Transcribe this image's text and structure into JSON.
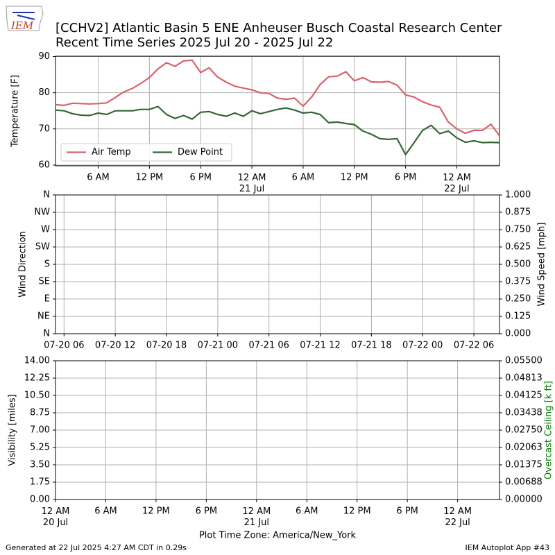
{
  "header": {
    "logo": "IEM",
    "title": "[CCHV2] Atlantic Basin 5 ENE Anheuser Busch Coastal Research Center",
    "subtitle": "Recent Time Series 2025 Jul 20 - 2025 Jul 22"
  },
  "footer": {
    "left": "Generated at 22 Jul 2025 4:27 AM CDT in 0.29s",
    "right": "IEM Autoplot App #43"
  },
  "chart_data": [
    {
      "type": "line",
      "ylabel": "Temperature [F]",
      "grid": true,
      "legend": "lower left",
      "xlim": [
        "2025-07-20T01:00",
        "2025-07-22T05:00"
      ],
      "xticks": [
        {
          "value": "2025-07-20T06:00",
          "label": "6 AM"
        },
        {
          "value": "2025-07-20T12:00",
          "label": "12 PM"
        },
        {
          "value": "2025-07-20T18:00",
          "label": "6 PM"
        },
        {
          "value": "2025-07-21T00:00",
          "label": "12 AM\n21 Jul"
        },
        {
          "value": "2025-07-21T06:00",
          "label": "6 AM"
        },
        {
          "value": "2025-07-21T12:00",
          "label": "12 PM"
        },
        {
          "value": "2025-07-21T18:00",
          "label": "6 PM"
        },
        {
          "value": "2025-07-22T00:00",
          "label": "12 AM\n22 Jul"
        }
      ],
      "ylim": [
        59.8,
        90.1
      ],
      "yticks": [
        60,
        70,
        80,
        90
      ],
      "x": [
        "2025-07-20T01:00",
        "2025-07-20T02:00",
        "2025-07-20T03:00",
        "2025-07-20T04:00",
        "2025-07-20T05:00",
        "2025-07-20T06:00",
        "2025-07-20T07:00",
        "2025-07-20T08:00",
        "2025-07-20T09:00",
        "2025-07-20T10:00",
        "2025-07-20T11:00",
        "2025-07-20T12:00",
        "2025-07-20T13:00",
        "2025-07-20T14:00",
        "2025-07-20T15:00",
        "2025-07-20T16:00",
        "2025-07-20T17:00",
        "2025-07-20T18:00",
        "2025-07-20T19:00",
        "2025-07-20T20:00",
        "2025-07-20T21:00",
        "2025-07-20T22:00",
        "2025-07-20T23:00",
        "2025-07-21T00:00",
        "2025-07-21T01:00",
        "2025-07-21T02:00",
        "2025-07-21T03:00",
        "2025-07-21T04:00",
        "2025-07-21T05:00",
        "2025-07-21T06:00",
        "2025-07-21T07:00",
        "2025-07-21T08:00",
        "2025-07-21T09:00",
        "2025-07-21T10:00",
        "2025-07-21T11:00",
        "2025-07-21T12:00",
        "2025-07-21T13:00",
        "2025-07-21T14:00",
        "2025-07-21T15:00",
        "2025-07-21T16:00",
        "2025-07-21T17:00",
        "2025-07-21T18:00",
        "2025-07-21T19:00",
        "2025-07-21T20:00",
        "2025-07-21T21:00",
        "2025-07-21T22:00",
        "2025-07-21T23:00",
        "2025-07-22T00:00",
        "2025-07-22T01:00",
        "2025-07-22T02:00",
        "2025-07-22T03:00",
        "2025-07-22T04:00",
        "2025-07-22T05:00"
      ],
      "series": [
        {
          "name": "Air Temp",
          "color": "#d9626b",
          "values": [
            76.7,
            76.5,
            77.1,
            77.0,
            76.9,
            77.0,
            77.2,
            78.7,
            80.2,
            81.2,
            82.6,
            84.2,
            86.6,
            88.3,
            87.3,
            88.8,
            89.0,
            85.6,
            86.9,
            84.3,
            82.9,
            81.8,
            81.3,
            80.8,
            80.0,
            79.8,
            78.5,
            78.2,
            78.5,
            76.3,
            78.8,
            82.3,
            84.4,
            84.6,
            85.8,
            83.3,
            84.2,
            83.0,
            82.9,
            83.1,
            82.1,
            79.4,
            78.8,
            77.5,
            76.6,
            76.0,
            71.9,
            70.0,
            68.8,
            69.6,
            69.6,
            71.3,
            68.1
          ]
        },
        {
          "name": "Dew Point",
          "color": "#336633",
          "values": [
            75.2,
            75.0,
            74.2,
            73.8,
            73.7,
            74.4,
            74.0,
            75.0,
            75.0,
            75.0,
            75.4,
            75.4,
            76.2,
            74.0,
            72.9,
            73.7,
            72.7,
            74.6,
            74.8,
            74.0,
            73.5,
            74.4,
            73.5,
            75.0,
            74.2,
            74.8,
            75.4,
            75.8,
            75.2,
            74.4,
            74.6,
            74.0,
            71.7,
            71.9,
            71.5,
            71.2,
            69.4,
            68.5,
            67.3,
            67.1,
            67.3,
            62.9,
            66.2,
            69.6,
            71.0,
            68.7,
            69.4,
            67.5,
            66.3,
            66.7,
            66.2,
            66.3,
            66.2
          ]
        }
      ]
    },
    {
      "type": "line",
      "ylabel": "Wind Direction",
      "y2label": "Wind Speed [mph]",
      "grid": true,
      "xlim": [
        "2025-07-20T05:00",
        "2025-07-22T09:00"
      ],
      "xticks": [
        {
          "value": "2025-07-20T06:00",
          "label": "07-20 06"
        },
        {
          "value": "2025-07-20T12:00",
          "label": "07-20 12"
        },
        {
          "value": "2025-07-20T18:00",
          "label": "07-20 18"
        },
        {
          "value": "2025-07-21T00:00",
          "label": "07-21 00"
        },
        {
          "value": "2025-07-21T06:00",
          "label": "07-21 06"
        },
        {
          "value": "2025-07-21T12:00",
          "label": "07-21 12"
        },
        {
          "value": "2025-07-21T18:00",
          "label": "07-21 18"
        },
        {
          "value": "2025-07-22T00:00",
          "label": "07-22 00"
        },
        {
          "value": "2025-07-22T06:00",
          "label": "07-22 06"
        }
      ],
      "ylim": [
        0,
        360
      ],
      "yticks": [
        {
          "value": 0,
          "label": "N"
        },
        {
          "value": 45,
          "label": "NE"
        },
        {
          "value": 90,
          "label": "E"
        },
        {
          "value": 135,
          "label": "SE"
        },
        {
          "value": 180,
          "label": "S"
        },
        {
          "value": 225,
          "label": "SW"
        },
        {
          "value": 270,
          "label": "W"
        },
        {
          "value": 315,
          "label": "NW"
        },
        {
          "value": 360,
          "label": "N"
        }
      ],
      "y2lim": [
        0,
        1
      ],
      "y2ticks": [
        {
          "value": 0,
          "label": "0.000"
        },
        {
          "value": 0.125,
          "label": "0.125"
        },
        {
          "value": 0.25,
          "label": "0.250"
        },
        {
          "value": 0.375,
          "label": "0.375"
        },
        {
          "value": 0.5,
          "label": "0.500"
        },
        {
          "value": 0.625,
          "label": "0.625"
        },
        {
          "value": 0.75,
          "label": "0.750"
        },
        {
          "value": 0.875,
          "label": "0.875"
        },
        {
          "value": 1,
          "label": "1.000"
        }
      ]
    },
    {
      "type": "line",
      "ylabel": "Visibility [miles]",
      "y2label": "Overcast Ceiling [k ft]",
      "y2label_color": "#008000",
      "xlabel": "Plot Time Zone: America/New_York",
      "grid": true,
      "xlim": [
        "2025-07-20T00:00",
        "2025-07-22T05:00"
      ],
      "xticks": [
        {
          "value": "2025-07-20T00:00",
          "label": "12 AM\n20 Jul"
        },
        {
          "value": "2025-07-20T06:00",
          "label": "6 AM"
        },
        {
          "value": "2025-07-20T12:00",
          "label": "12 PM"
        },
        {
          "value": "2025-07-20T18:00",
          "label": "6 PM"
        },
        {
          "value": "2025-07-21T00:00",
          "label": "12 AM\n21 Jul"
        },
        {
          "value": "2025-07-21T06:00",
          "label": "6 AM"
        },
        {
          "value": "2025-07-21T12:00",
          "label": "12 PM"
        },
        {
          "value": "2025-07-21T18:00",
          "label": "6 PM"
        },
        {
          "value": "2025-07-22T00:00",
          "label": "12 AM\n22 Jul"
        }
      ],
      "ylim": [
        0,
        14
      ],
      "yticks": [
        {
          "value": 0,
          "label": "0.00"
        },
        {
          "value": 1.75,
          "label": "1.75"
        },
        {
          "value": 3.5,
          "label": "3.50"
        },
        {
          "value": 5.25,
          "label": "5.25"
        },
        {
          "value": 7,
          "label": "7.00"
        },
        {
          "value": 8.75,
          "label": "8.75"
        },
        {
          "value": 10.5,
          "label": "10.50"
        },
        {
          "value": 12.25,
          "label": "12.25"
        },
        {
          "value": 14,
          "label": "14.00"
        }
      ],
      "y2lim": [
        0,
        0.055
      ],
      "y2ticks": [
        {
          "value": 0,
          "label": "0.00000"
        },
        {
          "value": 0.006875,
          "label": "0.00688"
        },
        {
          "value": 0.01375,
          "label": "0.01375"
        },
        {
          "value": 0.020625,
          "label": "0.02063"
        },
        {
          "value": 0.0275,
          "label": "0.02750"
        },
        {
          "value": 0.034375,
          "label": "0.03438"
        },
        {
          "value": 0.04125,
          "label": "0.04125"
        },
        {
          "value": 0.048125,
          "label": "0.04813"
        },
        {
          "value": 0.055,
          "label": "0.05500"
        }
      ]
    }
  ]
}
